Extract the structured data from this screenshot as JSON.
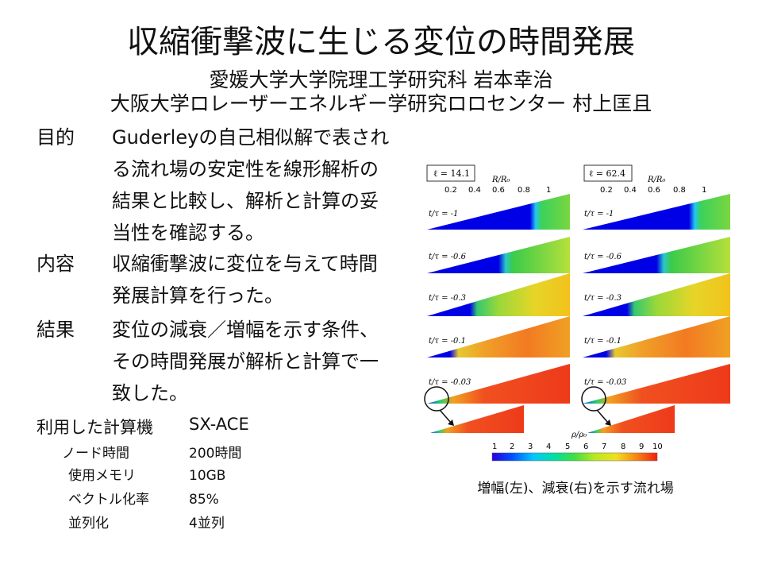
{
  "title": "収縮衝撃波に生じる変位の時間発展",
  "authors": {
    "line1": "愛媛大学大学院理工学研究科 岩本幸治",
    "line2": "大阪大学ロレーザーエネルギー学研究ロロセンター 村上匡且"
  },
  "sections": [
    {
      "label": "目的",
      "lines": [
        "Guderleyの自己相似解で表され",
        "る流れ場の安定性を線形解析の",
        "結果と比較し、解析と計算の妥",
        "当性を確認する。"
      ]
    },
    {
      "label": "内容",
      "lines": [
        "収縮衝撃波に変位を与えて時間",
        "発展計算を行った。"
      ]
    },
    {
      "label": "結果",
      "lines": [
        "変位の減衰／増幅を示す条件、",
        "その時間発展が解析と計算で一",
        "致した。"
      ]
    }
  ],
  "computer": {
    "label": "利用した計算機",
    "value": "SX-ACE"
  },
  "specs": [
    {
      "name": "ノード時間",
      "value": "200時間"
    },
    {
      "name": "使用メモリ",
      "value": "10GB"
    },
    {
      "name": "ベクトル化率",
      "value": "85%"
    },
    {
      "name": "並列化",
      "value": "4並列"
    }
  ],
  "figure": {
    "panels": [
      {
        "ell": "ℓ = 14.1"
      },
      {
        "ell": "ℓ = 62.4"
      }
    ],
    "axis_label": "R/R₀",
    "axis_ticks": [
      "0.2",
      "0.4",
      "0.6",
      "0.8",
      "1"
    ],
    "time_labels": [
      "t/τ = -1",
      "t/τ = -0.6",
      "t/τ = -0.3",
      "t/τ = -0.1",
      "t/τ = -0.03"
    ],
    "colorbar_label": "ρ/ρ₀",
    "colorbar_ticks": [
      "1",
      "2",
      "3",
      "4",
      "5",
      "6",
      "7",
      "8",
      "9",
      "10"
    ]
  },
  "caption": "増幅(左)、減衰(右)を示す流れ場"
}
